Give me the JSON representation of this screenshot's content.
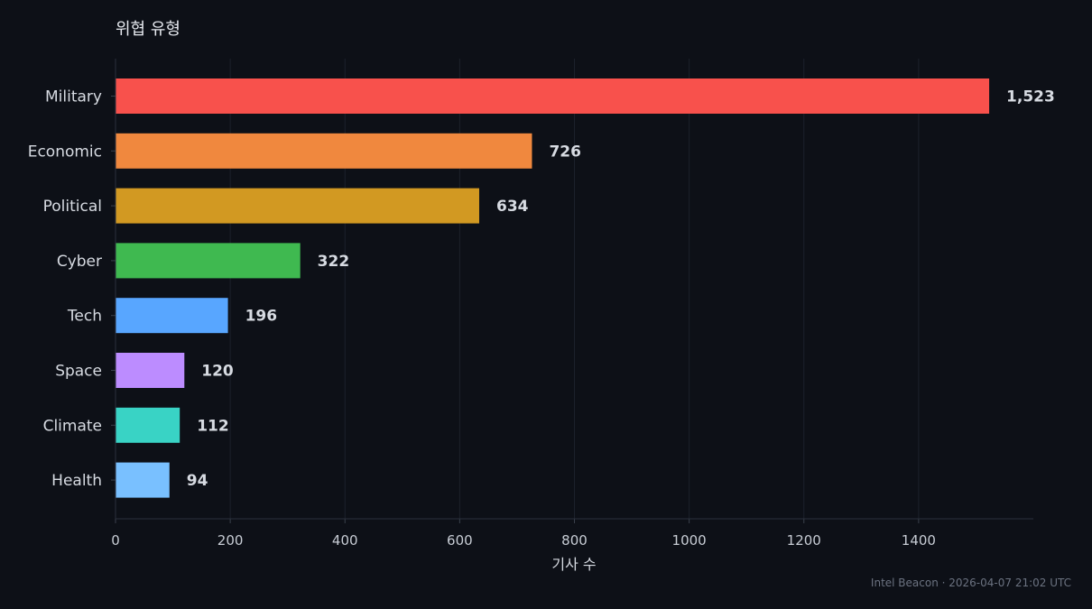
{
  "chart_data": {
    "type": "bar",
    "orientation": "horizontal",
    "title": "위협 유형",
    "xlabel": "기사 수",
    "ylabel": "",
    "xlim": [
      0,
      1600
    ],
    "xticks": [
      0,
      200,
      400,
      600,
      800,
      1000,
      1200,
      1400
    ],
    "grid": true,
    "categories": [
      "Military",
      "Economic",
      "Political",
      "Cyber",
      "Tech",
      "Space",
      "Climate",
      "Health"
    ],
    "values": [
      1523,
      726,
      634,
      322,
      196,
      120,
      112,
      94
    ],
    "value_labels": [
      "1,523",
      "726",
      "634",
      "322",
      "196",
      "120",
      "112",
      "94"
    ],
    "colors": [
      "#f8514c",
      "#f0883e",
      "#d29922",
      "#3fb950",
      "#58a6ff",
      "#bc8cff",
      "#39d3c5",
      "#79c0ff"
    ]
  },
  "footer": {
    "text": "Intel Beacon · 2026-04-07 21:02 UTC"
  }
}
